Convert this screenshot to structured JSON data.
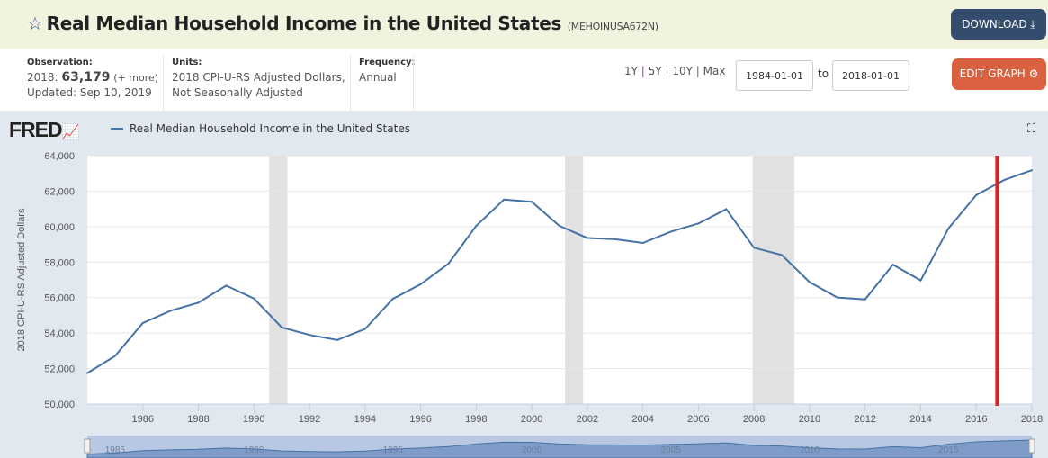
{
  "header": {
    "title": "Real Median Household Income in the United States",
    "series_id": "(MEHOINUSA672N)",
    "download_label": "DOWNLOAD"
  },
  "info": {
    "observation_label": "Observation:",
    "observation_date": "2018:",
    "observation_value": "63,179",
    "observation_more": "(+ more)",
    "updated": "Updated: Sep 10, 2019",
    "units_label": "Units:",
    "units_line1": "2018 CPI-U-RS Adjusted Dollars,",
    "units_line2": "Not Seasonally Adjusted",
    "frequency_label": "Frequency:",
    "frequency": "Annual"
  },
  "controls": {
    "range_1y": "1Y",
    "range_5y": "5Y",
    "range_10y": "10Y",
    "range_max": "Max",
    "sep": "|",
    "start_date": "1984-01-01",
    "to_label": "to",
    "end_date": "2018-01-01",
    "edit_label": "EDIT GRAPH"
  },
  "logo": "FRED",
  "colors": {
    "line": "#4572a7",
    "recession": "#e1e1e1",
    "marker": "#e02020"
  },
  "chart_data": {
    "type": "line",
    "title": "Real Median Household Income in the United States",
    "ylabel": "2018 CPI-U-RS Adjusted Dollars",
    "xlim": [
      1984,
      2018
    ],
    "ylim": [
      50000,
      64000
    ],
    "yticks": [
      50000,
      52000,
      54000,
      56000,
      58000,
      60000,
      62000,
      64000
    ],
    "ytick_labels": [
      "50,000",
      "52,000",
      "54,000",
      "56,000",
      "58,000",
      "60,000",
      "62,000",
      "64,000"
    ],
    "xticks": [
      1986,
      1988,
      1990,
      1992,
      1994,
      1996,
      1998,
      2000,
      2002,
      2004,
      2006,
      2008,
      2010,
      2012,
      2014,
      2016,
      2018
    ],
    "xtick_labels": [
      "1986",
      "1988",
      "1990",
      "1992",
      "1994",
      "1996",
      "1998",
      "2000",
      "2002",
      "2004",
      "2006",
      "2008",
      "2010",
      "2012",
      "2014",
      "2016",
      "2018"
    ],
    "series": [
      {
        "name": "Real Median Household Income in the United States",
        "x": [
          1984,
          1985,
          1986,
          1987,
          1988,
          1989,
          1990,
          1991,
          1992,
          1993,
          1994,
          1995,
          1996,
          1997,
          1998,
          1999,
          2000,
          2001,
          2002,
          2003,
          2004,
          2005,
          2006,
          2007,
          2008,
          2009,
          2010,
          2011,
          2012,
          2013,
          2014,
          2015,
          2016,
          2017,
          2018
        ],
        "values": [
          51742,
          52709,
          54568,
          55260,
          55716,
          56678,
          55952,
          54318,
          53897,
          53610,
          54233,
          55931,
          56749,
          57911,
          60040,
          61526,
          61399,
          60038,
          59360,
          59286,
          59080,
          59712,
          60178,
          60985,
          58811,
          58400,
          56873,
          56006,
          55900,
          57856,
          56969,
          59901,
          61779,
          62626,
          63179
        ]
      }
    ],
    "recessions": [
      [
        1990.55,
        1991.2
      ],
      [
        2001.2,
        2001.85
      ],
      [
        2007.95,
        2009.45
      ]
    ],
    "marker_x": 2016.75,
    "navigator_labels": [
      "1985",
      "1990",
      "1995",
      "2000",
      "2005",
      "2010",
      "2015"
    ],
    "grid": true,
    "legend": "top-left"
  }
}
